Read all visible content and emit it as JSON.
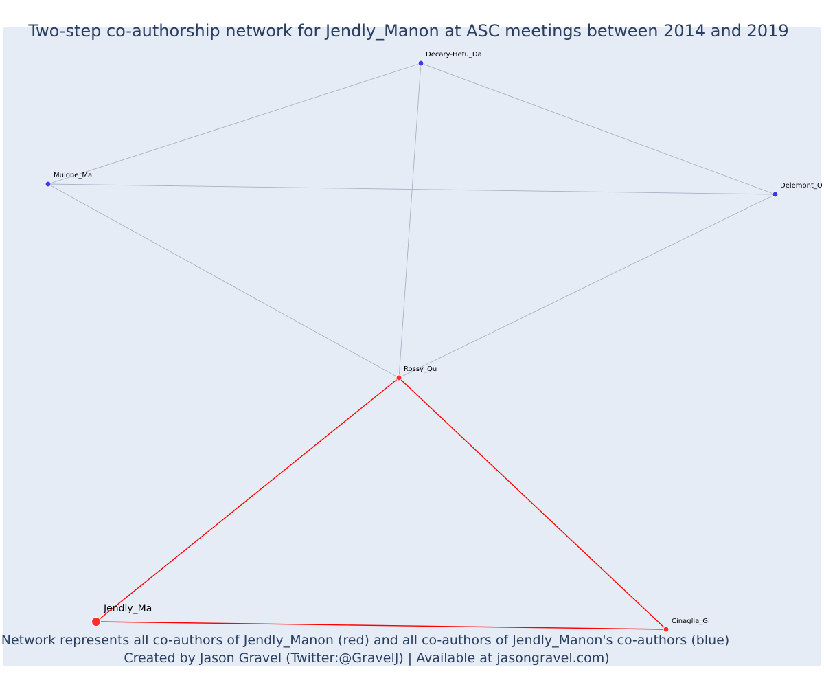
{
  "title": "Two-step co-authorship network for Jendly_Manon at ASC meetings between 2014 and 2019",
  "footer": {
    "line1": "Network represents all co-authors of Jendly_Manon (red) and all co-authors of Jendly_Manon's co-authors (blue)",
    "line2": "Created by Jason Gravel (Twitter:@GravelJ) | Available at jasongravel.com)"
  },
  "colors": {
    "background": "#e5ecf6",
    "red_node": "#ff2d2d",
    "blue_node": "#3a3ae8",
    "red_edge": "#ff0000",
    "grey_edge": "#aab0c4",
    "title": "#2a3f5f"
  },
  "nodes": [
    {
      "id": "Jendly_Ma",
      "label": "Jendly_Ma",
      "group": "focal",
      "color": "red"
    },
    {
      "id": "Rossy_Qu",
      "label": "Rossy_Qu",
      "group": "coauthor",
      "color": "red"
    },
    {
      "id": "Cinaglia_Gi",
      "label": "Cinaglia_Gi",
      "group": "coauthor",
      "color": "red"
    },
    {
      "id": "Decary-Hetu_Da",
      "label": "Decary-Hetu_Da",
      "group": "second_step",
      "color": "blue"
    },
    {
      "id": "Mulone_Ma",
      "label": "Mulone_Ma",
      "group": "second_step",
      "color": "blue"
    },
    {
      "id": "Delemont_O",
      "label": "Delemont_O",
      "group": "second_step",
      "color": "blue"
    }
  ],
  "edges": [
    {
      "source": "Jendly_Ma",
      "target": "Rossy_Qu",
      "type": "red"
    },
    {
      "source": "Jendly_Ma",
      "target": "Cinaglia_Gi",
      "type": "red"
    },
    {
      "source": "Rossy_Qu",
      "target": "Cinaglia_Gi",
      "type": "red"
    },
    {
      "source": "Rossy_Qu",
      "target": "Decary-Hetu_Da",
      "type": "grey"
    },
    {
      "source": "Rossy_Qu",
      "target": "Mulone_Ma",
      "type": "grey"
    },
    {
      "source": "Rossy_Qu",
      "target": "Delemont_O",
      "type": "grey"
    },
    {
      "source": "Decary-Hetu_Da",
      "target": "Mulone_Ma",
      "type": "grey"
    },
    {
      "source": "Decary-Hetu_Da",
      "target": "Delemont_O",
      "type": "grey"
    },
    {
      "source": "Mulone_Ma",
      "target": "Delemont_O",
      "type": "grey"
    }
  ]
}
